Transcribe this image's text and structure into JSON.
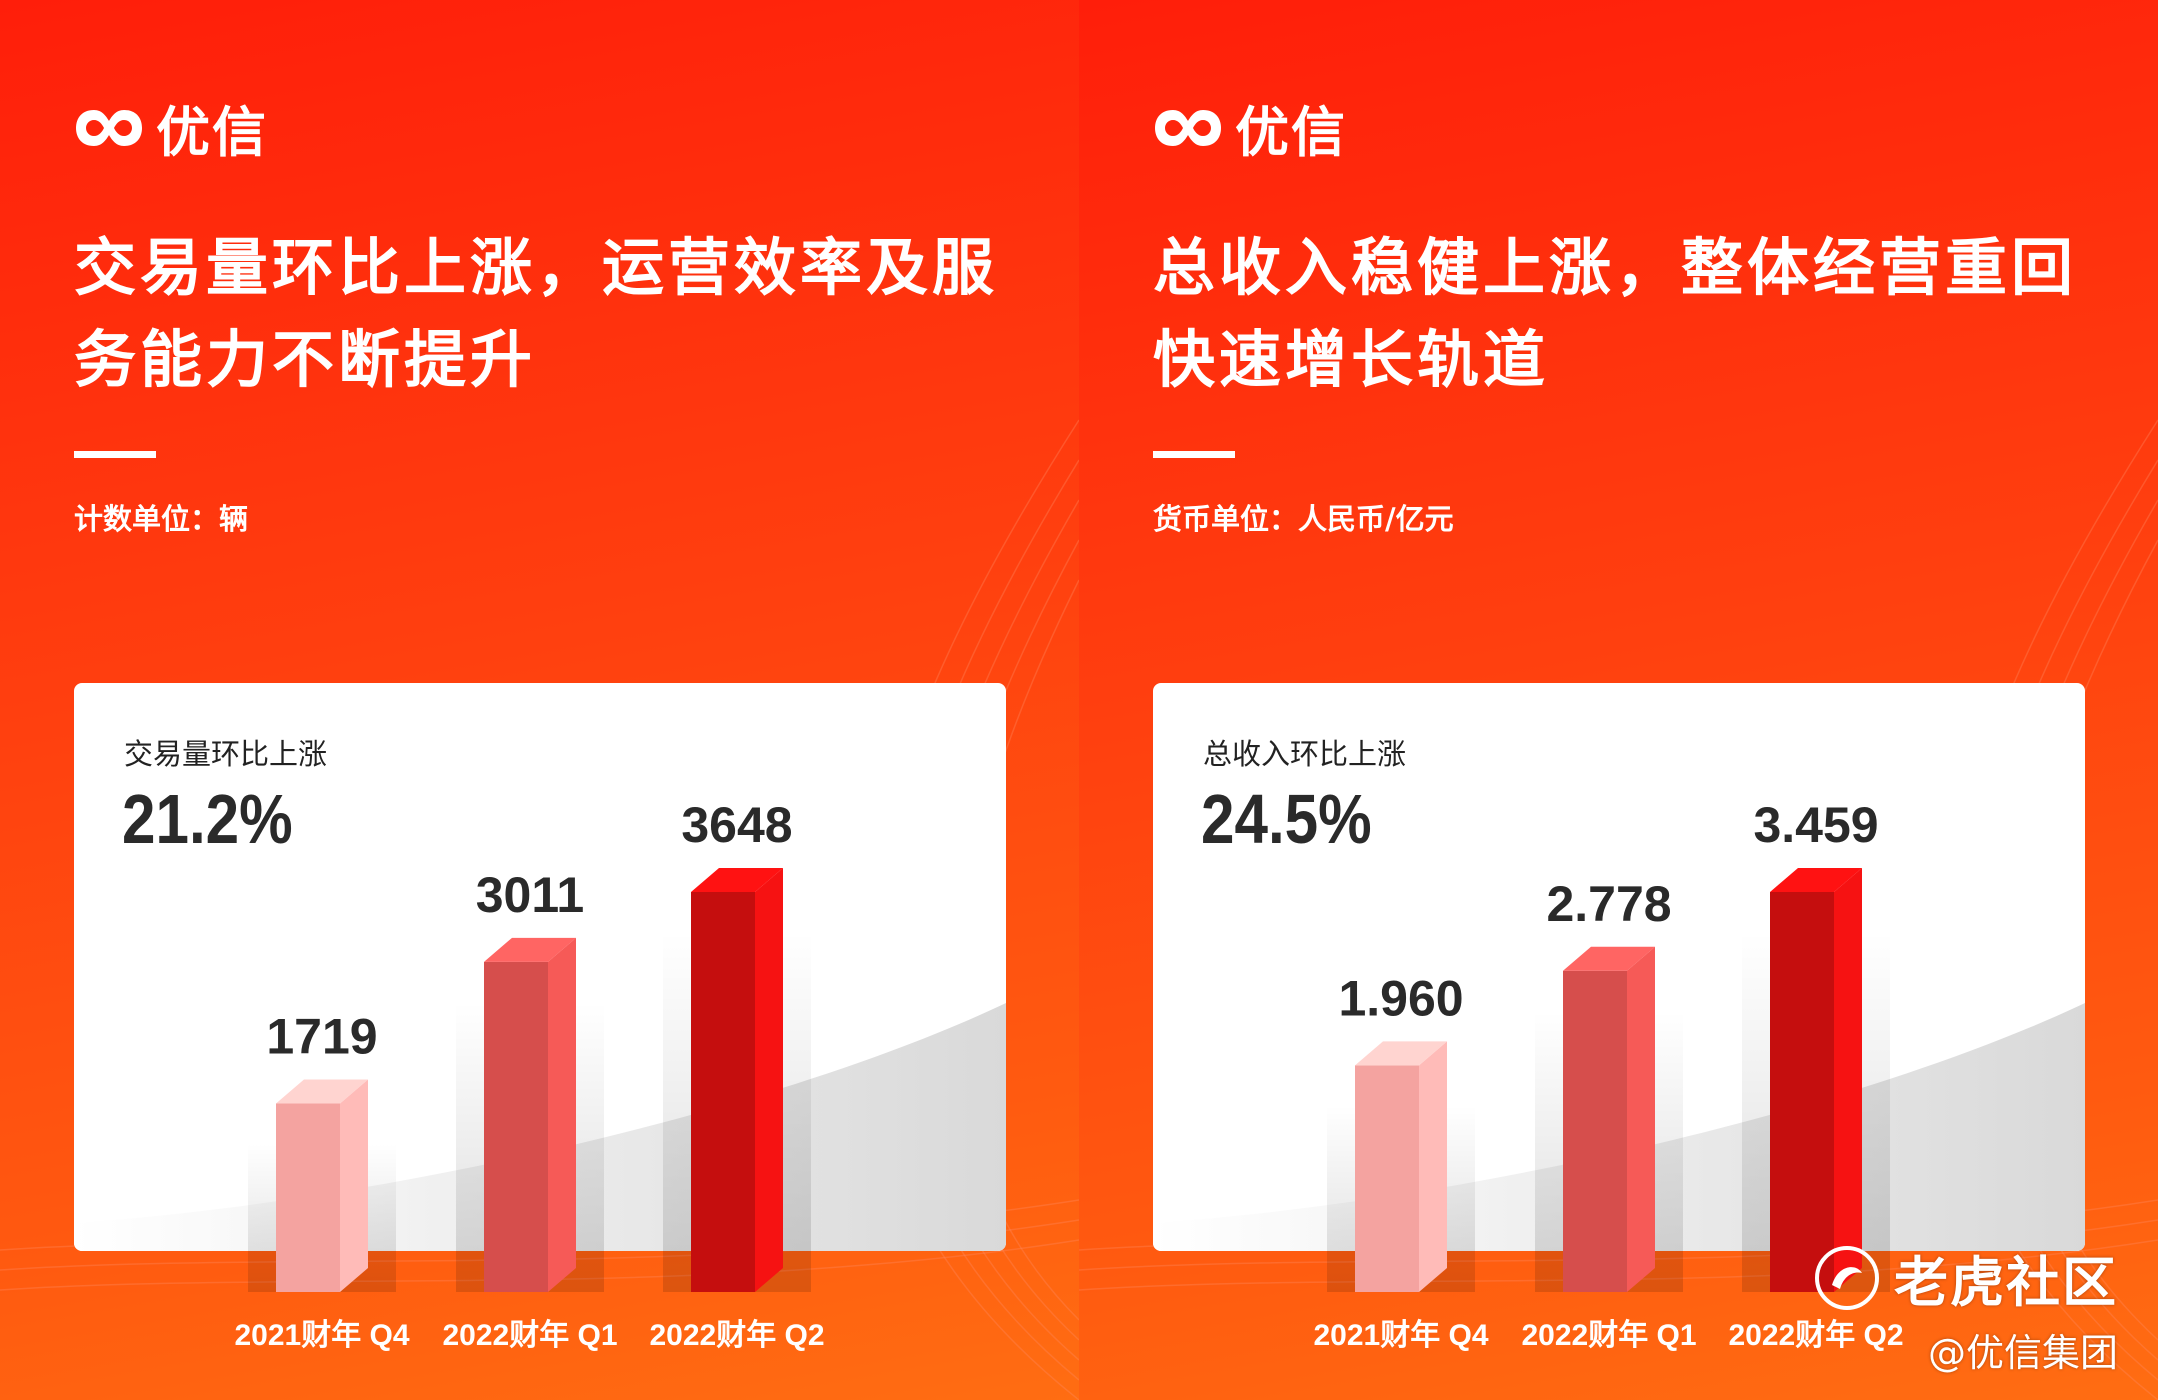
{
  "panels": [
    {
      "brand": "优信",
      "headline_line1": "交易量环比上涨，运营效率及服",
      "headline_line2": "务能力不断提升",
      "unit_label": "计数单位：辆",
      "kpi_label": "交易量环比上涨",
      "kpi_value": "21.2%"
    },
    {
      "brand": "优信",
      "headline_line1": "总收入稳健上涨，整体经营重回",
      "headline_line2": "快速增长轨道",
      "unit_label": "货币单位：人民币/亿元",
      "kpi_label": "总收入环比上涨",
      "kpi_value": "24.5%"
    }
  ],
  "watermark": {
    "text": "老虎社区",
    "handle": "@优信集团"
  },
  "colors": {
    "bar_light": "#f4a3a0",
    "bar_mid": "#d64e4c",
    "bar_dark": "#c50e0e",
    "accent": "#ff3a10"
  },
  "chart_data": [
    {
      "type": "bar",
      "categories": [
        "2021财年 Q4",
        "2022财年 Q1",
        "2022财年 Q2"
      ],
      "values": [
        1719,
        3011,
        3648
      ],
      "value_labels": [
        "1719",
        "3011",
        "3648"
      ],
      "ylim": [
        0,
        3648
      ]
    },
    {
      "type": "bar",
      "categories": [
        "2021财年 Q4",
        "2022财年 Q1",
        "2022财年 Q2"
      ],
      "values": [
        1.96,
        2.778,
        3.459
      ],
      "value_labels": [
        "1.960",
        "2.778",
        "3.459"
      ],
      "ylim": [
        0,
        3.459
      ]
    }
  ]
}
